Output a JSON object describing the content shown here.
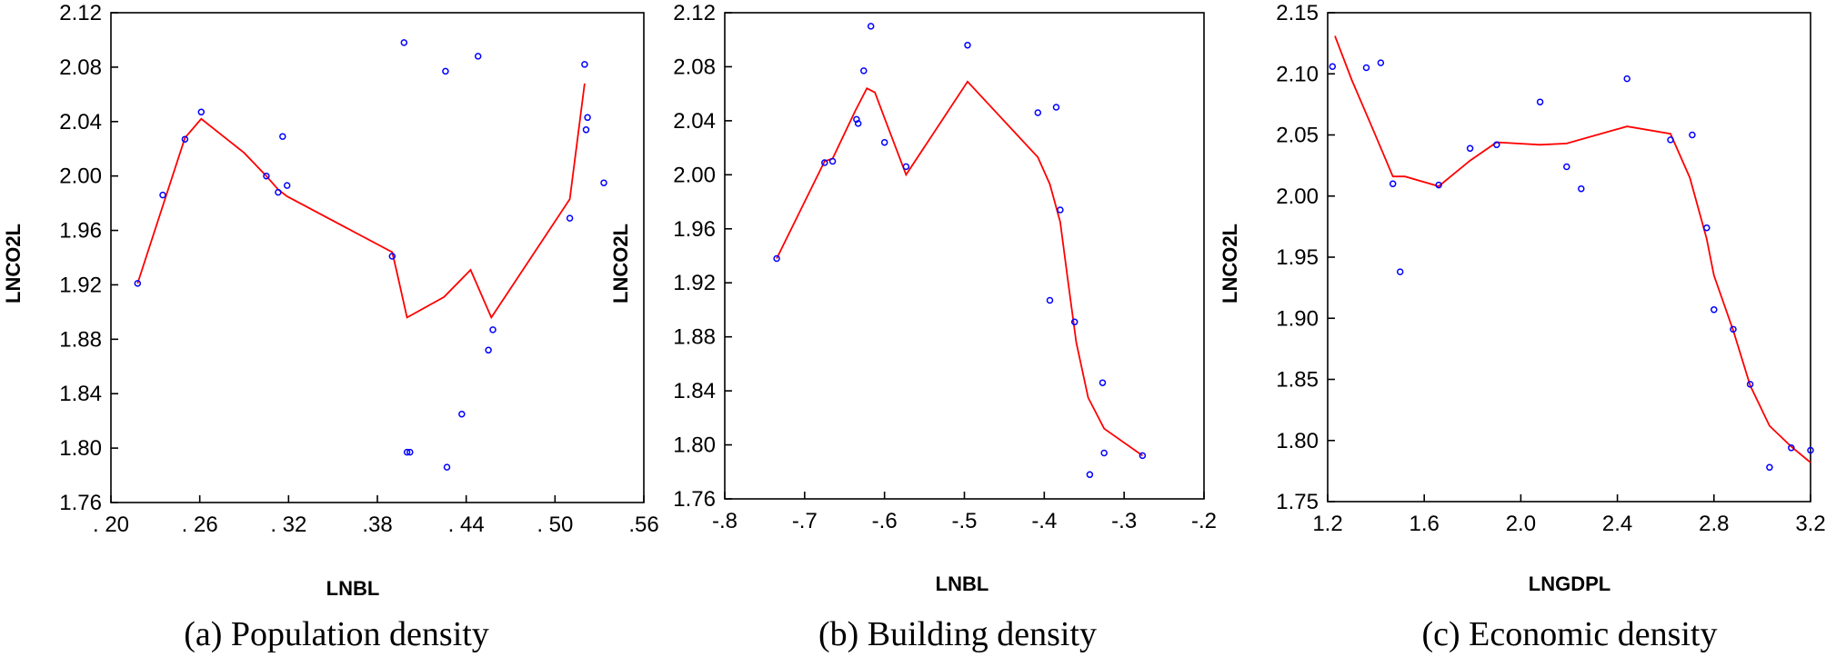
{
  "chart_data": [
    {
      "type": "scatter",
      "caption": "(a) Population density",
      "xlabel": "LNBL",
      "ylabel": "LNCO2L",
      "xlim": [
        0.2,
        0.56
      ],
      "ylim": [
        1.76,
        2.12
      ],
      "x_ticks": [
        {
          "value": 0.2,
          "label": ". 20"
        },
        {
          "value": 0.26,
          "label": ". 26"
        },
        {
          "value": 0.32,
          "label": ". 32"
        },
        {
          "value": 0.38,
          "label": ".38"
        },
        {
          "value": 0.44,
          "label": ". 44"
        },
        {
          "value": 0.5,
          "label": ". 50"
        },
        {
          "value": 0.56,
          "label": ".56"
        }
      ],
      "y_ticks": [
        {
          "value": 1.76,
          "label": "1.76"
        },
        {
          "value": 1.8,
          "label": "1.80"
        },
        {
          "value": 1.84,
          "label": "1.84"
        },
        {
          "value": 1.88,
          "label": "1.88"
        },
        {
          "value": 1.92,
          "label": "1.92"
        },
        {
          "value": 1.96,
          "label": "1.96"
        },
        {
          "value": 2.0,
          "label": "2.00"
        },
        {
          "value": 2.04,
          "label": "2.04"
        },
        {
          "value": 2.08,
          "label": "2.08"
        },
        {
          "value": 2.12,
          "label": "2.12"
        }
      ],
      "points": [
        [
          0.218,
          1.921
        ],
        [
          0.235,
          1.986
        ],
        [
          0.25,
          2.027
        ],
        [
          0.261,
          2.047
        ],
        [
          0.305,
          2.0
        ],
        [
          0.313,
          1.988
        ],
        [
          0.316,
          2.029
        ],
        [
          0.319,
          1.993
        ],
        [
          0.39,
          1.941
        ],
        [
          0.398,
          2.098
        ],
        [
          0.4,
          1.797
        ],
        [
          0.402,
          1.797
        ],
        [
          0.426,
          2.077
        ],
        [
          0.427,
          1.786
        ],
        [
          0.437,
          1.825
        ],
        [
          0.448,
          2.088
        ],
        [
          0.455,
          1.872
        ],
        [
          0.458,
          1.887
        ],
        [
          0.51,
          1.969
        ],
        [
          0.52,
          2.082
        ],
        [
          0.521,
          2.034
        ],
        [
          0.522,
          2.043
        ],
        [
          0.533,
          1.995
        ]
      ],
      "fit_line": [
        [
          0.218,
          1.921
        ],
        [
          0.235,
          1.978
        ],
        [
          0.25,
          2.028
        ],
        [
          0.261,
          2.042
        ],
        [
          0.29,
          2.017
        ],
        [
          0.305,
          2.0
        ],
        [
          0.313,
          1.99
        ],
        [
          0.319,
          1.985
        ],
        [
          0.39,
          1.944
        ],
        [
          0.393,
          1.93
        ],
        [
          0.4,
          1.896
        ],
        [
          0.425,
          1.911
        ],
        [
          0.443,
          1.931
        ],
        [
          0.457,
          1.896
        ],
        [
          0.51,
          1.983
        ],
        [
          0.52,
          2.068
        ]
      ]
    },
    {
      "type": "scatter",
      "caption": "(b) Building density",
      "xlabel": "LNBL",
      "ylabel": "LNCO2L",
      "xlim": [
        -0.8,
        -0.2
      ],
      "ylim": [
        1.76,
        2.12
      ],
      "x_ticks": [
        {
          "value": -0.8,
          "label": "-.8"
        },
        {
          "value": -0.7,
          "label": "-.7"
        },
        {
          "value": -0.6,
          "label": "-.6"
        },
        {
          "value": -0.5,
          "label": "-.5"
        },
        {
          "value": -0.4,
          "label": "-.4"
        },
        {
          "value": -0.3,
          "label": "-.3"
        },
        {
          "value": -0.2,
          "label": "-.2"
        }
      ],
      "y_ticks": [
        {
          "value": 1.76,
          "label": "1.76"
        },
        {
          "value": 1.8,
          "label": "1.80"
        },
        {
          "value": 1.84,
          "label": "1.84"
        },
        {
          "value": 1.88,
          "label": "1.88"
        },
        {
          "value": 1.92,
          "label": "1.92"
        },
        {
          "value": 1.96,
          "label": "1.96"
        },
        {
          "value": 2.0,
          "label": "2.00"
        },
        {
          "value": 2.04,
          "label": "2.04"
        },
        {
          "value": 2.08,
          "label": "2.08"
        },
        {
          "value": 2.12,
          "label": "2.12"
        }
      ],
      "points": [
        [
          -0.735,
          1.938
        ],
        [
          -0.675,
          2.009
        ],
        [
          -0.665,
          2.01
        ],
        [
          -0.635,
          2.041
        ],
        [
          -0.633,
          2.038
        ],
        [
          -0.626,
          2.077
        ],
        [
          -0.617,
          2.11
        ],
        [
          -0.6,
          2.024
        ],
        [
          -0.573,
          2.006
        ],
        [
          -0.496,
          2.096
        ],
        [
          -0.408,
          2.046
        ],
        [
          -0.393,
          1.907
        ],
        [
          -0.385,
          2.05
        ],
        [
          -0.38,
          1.974
        ],
        [
          -0.362,
          1.891
        ],
        [
          -0.343,
          1.778
        ],
        [
          -0.327,
          1.846
        ],
        [
          -0.325,
          1.794
        ],
        [
          -0.277,
          1.792
        ]
      ],
      "fit_line": [
        [
          -0.735,
          1.938
        ],
        [
          -0.675,
          2.01
        ],
        [
          -0.665,
          2.012
        ],
        [
          -0.636,
          2.048
        ],
        [
          -0.622,
          2.064
        ],
        [
          -0.612,
          2.061
        ],
        [
          -0.6,
          2.042
        ],
        [
          -0.573,
          2.0
        ],
        [
          -0.496,
          2.069
        ],
        [
          -0.408,
          2.013
        ],
        [
          -0.393,
          1.993
        ],
        [
          -0.38,
          1.965
        ],
        [
          -0.37,
          1.92
        ],
        [
          -0.36,
          1.876
        ],
        [
          -0.345,
          1.835
        ],
        [
          -0.325,
          1.812
        ],
        [
          -0.277,
          1.792
        ]
      ]
    },
    {
      "type": "scatter",
      "caption": "(c) Economic density",
      "xlabel": "LNGDPL",
      "ylabel": "LNCO2L",
      "xlim": [
        1.2,
        3.2
      ],
      "ylim": [
        1.75,
        2.15
      ],
      "x_ticks": [
        {
          "value": 1.2,
          "label": "1.2"
        },
        {
          "value": 1.6,
          "label": "1.6"
        },
        {
          "value": 2.0,
          "label": "2.0"
        },
        {
          "value": 2.4,
          "label": "2.4"
        },
        {
          "value": 2.8,
          "label": "2.8"
        },
        {
          "value": 3.2,
          "label": "3.2"
        }
      ],
      "y_ticks": [
        {
          "value": 1.75,
          "label": "1.75"
        },
        {
          "value": 1.8,
          "label": "1.80"
        },
        {
          "value": 1.85,
          "label": "1.85"
        },
        {
          "value": 1.9,
          "label": "1.90"
        },
        {
          "value": 1.95,
          "label": "1.95"
        },
        {
          "value": 2.0,
          "label": "2.00"
        },
        {
          "value": 2.05,
          "label": "2.05"
        },
        {
          "value": 2.1,
          "label": "2.10"
        },
        {
          "value": 2.15,
          "label": "2.15"
        }
      ],
      "points": [
        [
          1.22,
          2.106
        ],
        [
          1.36,
          2.105
        ],
        [
          1.42,
          2.109
        ],
        [
          1.47,
          2.01
        ],
        [
          1.5,
          1.938
        ],
        [
          1.66,
          2.009
        ],
        [
          1.79,
          2.039
        ],
        [
          1.9,
          2.042
        ],
        [
          2.08,
          2.077
        ],
        [
          2.19,
          2.024
        ],
        [
          2.25,
          2.006
        ],
        [
          2.44,
          2.096
        ],
        [
          2.62,
          2.046
        ],
        [
          2.71,
          2.05
        ],
        [
          2.77,
          1.974
        ],
        [
          2.8,
          1.907
        ],
        [
          2.88,
          1.891
        ],
        [
          2.95,
          1.846
        ],
        [
          3.03,
          1.778
        ],
        [
          3.12,
          1.794
        ],
        [
          3.2,
          1.792
        ]
      ],
      "fit_line": [
        [
          1.23,
          2.131
        ],
        [
          1.3,
          2.095
        ],
        [
          1.38,
          2.058
        ],
        [
          1.47,
          2.016
        ],
        [
          1.52,
          2.016
        ],
        [
          1.66,
          2.008
        ],
        [
          1.79,
          2.029
        ],
        [
          1.9,
          2.044
        ],
        [
          2.08,
          2.042
        ],
        [
          2.19,
          2.043
        ],
        [
          2.44,
          2.057
        ],
        [
          2.62,
          2.051
        ],
        [
          2.7,
          2.015
        ],
        [
          2.77,
          1.965
        ],
        [
          2.8,
          1.935
        ],
        [
          2.88,
          1.89
        ],
        [
          2.95,
          1.845
        ],
        [
          3.03,
          1.812
        ],
        [
          3.12,
          1.795
        ],
        [
          3.2,
          1.782
        ]
      ]
    }
  ]
}
